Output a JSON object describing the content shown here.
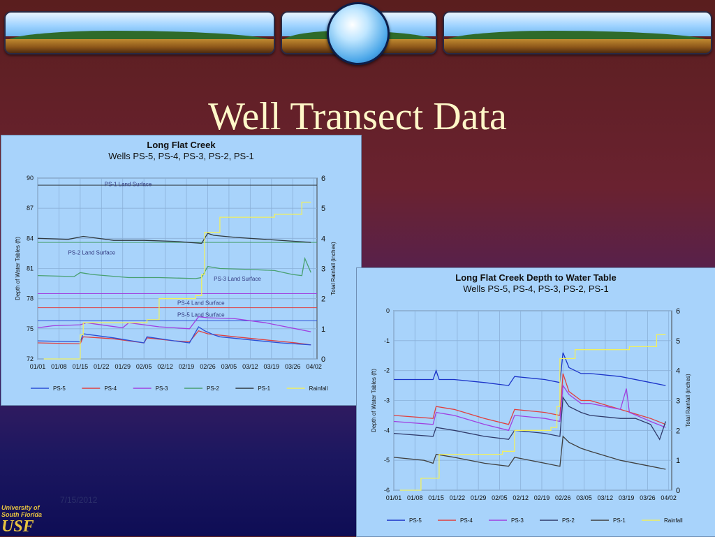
{
  "slide": {
    "title": "Well Transect Data",
    "date": "7/15/2012",
    "logo": {
      "line1": "University of",
      "line2": "South Florida",
      "mark": "USF"
    }
  },
  "chart_data": [
    {
      "type": "line",
      "title": "Long Flat Creek",
      "subtitle": "Wells PS-5, PS-4, PS-3, PS-2, PS-1",
      "ylabel": "Depth of Water Tables (ft)",
      "y2label": "Total Rainfall (inches)",
      "ylim": [
        72,
        90
      ],
      "y2lim": [
        0,
        6
      ],
      "yticks": [
        "72",
        "75",
        "78",
        "81",
        "84",
        "87",
        "90"
      ],
      "y2ticks": [
        "0",
        "1",
        "2",
        "3",
        "4",
        "5",
        "6"
      ],
      "xlim": [
        0,
        92
      ],
      "xticks": [
        0,
        7,
        14,
        21,
        28,
        35,
        42,
        49,
        56,
        63,
        70,
        77,
        84,
        91
      ],
      "xticklabels": [
        "01/01",
        "01/08",
        "01/15",
        "01/22",
        "01/29",
        "02/05",
        "02/12",
        "02/19",
        "02/26",
        "03/05",
        "03/12",
        "03/19",
        "03/26",
        "04/02"
      ],
      "grid": true,
      "legend_position": "bottom",
      "legend": [
        "PS-5",
        "PS-4",
        "PS-3",
        "PS-2",
        "PS-1",
        "Rainfall"
      ],
      "colors": {
        "PS-5": "#2a4fd6",
        "PS-4": "#e04040",
        "PS-3": "#a040e0",
        "PS-2": "#48a070",
        "PS-1": "#303a40",
        "Rainfall": "#f0f060"
      },
      "annotations": [
        {
          "text": "PS-1 Land Surface",
          "x": 22,
          "y": 89.2
        },
        {
          "text": "PS-2 Land Surface",
          "x": 10,
          "y": 82.4
        },
        {
          "text": "PS-3 Land Surface",
          "x": 58,
          "y": 79.8
        },
        {
          "text": "PS-4 Land Surface",
          "x": 46,
          "y": 77.4
        },
        {
          "text": "PS-5 Land Surface",
          "x": 46,
          "y": 76.2
        }
      ],
      "reference_lines": [
        {
          "color": "#303a40",
          "y": 89.3
        },
        {
          "color": "#48a070",
          "y": 83.6
        },
        {
          "color": "#a040e0",
          "y": 78.5
        },
        {
          "color": "#e04040",
          "y": 77.1
        },
        {
          "color": "#2a4fd6",
          "y": 75.8
        }
      ],
      "series": [
        {
          "name": "PS-1",
          "axis": "y",
          "x": [
            0,
            10,
            15,
            25,
            35,
            45,
            54,
            56,
            58,
            65,
            75,
            85,
            90
          ],
          "y": [
            84,
            83.9,
            84.2,
            83.8,
            83.8,
            83.7,
            83.5,
            84.5,
            84.3,
            84.1,
            83.9,
            83.7,
            83.6
          ]
        },
        {
          "name": "PS-2",
          "axis": "y",
          "x": [
            0,
            12,
            14,
            18,
            30,
            40,
            52,
            54,
            56,
            60,
            70,
            78,
            84,
            87,
            88,
            90
          ],
          "y": [
            80.3,
            80.2,
            80.6,
            80.4,
            80.1,
            80.1,
            80,
            80.1,
            81.2,
            81,
            80.9,
            80.8,
            80.4,
            80.3,
            82,
            80.6
          ]
        },
        {
          "name": "PS-3",
          "axis": "y",
          "x": [
            0,
            5,
            14,
            16,
            28,
            30,
            40,
            50,
            53,
            56,
            65,
            70,
            75,
            80,
            85,
            90
          ],
          "y": [
            75.1,
            75.3,
            75.4,
            75.6,
            75.1,
            75.6,
            75.2,
            75,
            76.2,
            76.1,
            76,
            75.8,
            75.6,
            75.3,
            75,
            74.7
          ]
        },
        {
          "name": "PS-4",
          "axis": "y",
          "x": [
            0,
            14,
            15,
            25,
            35,
            36,
            45,
            50,
            53,
            56,
            65,
            75,
            85,
            90
          ],
          "y": [
            73.6,
            73.5,
            74.2,
            74,
            73.6,
            74.1,
            73.8,
            73.7,
            74.8,
            74.5,
            74.2,
            73.9,
            73.6,
            73.4
          ]
        },
        {
          "name": "PS-5",
          "axis": "y",
          "x": [
            0,
            14,
            15,
            25,
            35,
            36,
            45,
            50,
            53,
            55,
            58,
            60,
            70,
            80,
            90
          ],
          "y": [
            73.8,
            73.7,
            74.5,
            74.1,
            73.6,
            74.2,
            73.8,
            73.6,
            75.2,
            74.8,
            74.4,
            74.2,
            73.9,
            73.6,
            73.4
          ]
        },
        {
          "name": "Rainfall",
          "axis": "y2",
          "x": [
            2,
            14,
            15,
            23,
            36,
            40,
            52,
            54,
            55,
            60,
            70,
            78,
            86,
            87,
            90
          ],
          "y": [
            0,
            0.8,
            1.2,
            1.2,
            1.3,
            2,
            2.1,
            2.8,
            4.2,
            4.7,
            4.7,
            4.8,
            4.8,
            5.2,
            5.2
          ]
        }
      ]
    },
    {
      "type": "line",
      "title": "Long Flat Creek Depth to Water Table",
      "subtitle": "Wells PS-5, PS-4, PS-3, PS-2, PS-1",
      "ylabel": "Depth of Water Tables (ft)",
      "y2label": "Total Rainfall (inches)",
      "ylim": [
        -6,
        0
      ],
      "y2lim": [
        0,
        6
      ],
      "yticks": [
        "-6",
        "-5",
        "-4",
        "-3",
        "-2",
        "-1",
        "0"
      ],
      "y2ticks": [
        "0",
        "1",
        "2",
        "3",
        "4",
        "5",
        "6"
      ],
      "xlim": [
        0,
        92
      ],
      "xticks": [
        0,
        7,
        14,
        21,
        28,
        35,
        42,
        49,
        56,
        63,
        70,
        77,
        84,
        91
      ],
      "xticklabels": [
        "01/01",
        "01/08",
        "01/15",
        "01/22",
        "01/29",
        "02/05",
        "02/12",
        "02/19",
        "02/26",
        "03/05",
        "03/12",
        "03/19",
        "03/26",
        "04/02"
      ],
      "grid": true,
      "legend_position": "bottom",
      "legend": [
        "PS-5",
        "PS-4",
        "PS-3",
        "PS-2",
        "PS-1",
        "Rainfall"
      ],
      "colors": {
        "PS-5": "#1b33c8",
        "PS-4": "#e04040",
        "PS-3": "#a040e0",
        "PS-2": "#303a6a",
        "PS-1": "#404040",
        "Rainfall": "#f0f060"
      },
      "series": [
        {
          "name": "PS-5",
          "axis": "y",
          "x": [
            0,
            5,
            13,
            14,
            15,
            20,
            30,
            38,
            40,
            50,
            55,
            56,
            58,
            62,
            65,
            75,
            85,
            90
          ],
          "y": [
            -2.3,
            -2.3,
            -2.3,
            -2,
            -2.3,
            -2.3,
            -2.4,
            -2.5,
            -2.2,
            -2.3,
            -2.4,
            -1.4,
            -1.9,
            -2.1,
            -2.1,
            -2.2,
            -2.4,
            -2.5
          ]
        },
        {
          "name": "PS-4",
          "axis": "y",
          "x": [
            0,
            13,
            14,
            20,
            30,
            38,
            40,
            50,
            55,
            56,
            58,
            62,
            65,
            75,
            85,
            90
          ],
          "y": [
            -3.5,
            -3.6,
            -3.2,
            -3.3,
            -3.6,
            -3.8,
            -3.3,
            -3.4,
            -3.5,
            -2.1,
            -2.7,
            -3,
            -3,
            -3.3,
            -3.6,
            -3.8
          ]
        },
        {
          "name": "PS-3",
          "axis": "y",
          "x": [
            0,
            13,
            14,
            20,
            30,
            38,
            40,
            50,
            55,
            56,
            58,
            62,
            65,
            75,
            77,
            78,
            85,
            90
          ],
          "y": [
            -3.7,
            -3.8,
            -3.4,
            -3.5,
            -3.8,
            -4,
            -3.5,
            -3.6,
            -3.7,
            -2.5,
            -2.8,
            -3.1,
            -3.1,
            -3.3,
            -2.6,
            -3.4,
            -3.7,
            -3.9
          ]
        },
        {
          "name": "PS-2",
          "axis": "y",
          "x": [
            0,
            13,
            14,
            20,
            30,
            38,
            40,
            50,
            55,
            56,
            58,
            62,
            65,
            75,
            80,
            85,
            88,
            90
          ],
          "y": [
            -4.1,
            -4.2,
            -3.9,
            -4,
            -4.2,
            -4.3,
            -4,
            -4.1,
            -4.2,
            -2.9,
            -3.2,
            -3.4,
            -3.5,
            -3.6,
            -3.6,
            -3.8,
            -4.3,
            -3.7
          ]
        },
        {
          "name": "PS-1",
          "axis": "y",
          "x": [
            0,
            10,
            13,
            14,
            20,
            30,
            38,
            40,
            50,
            55,
            56,
            58,
            62,
            65,
            75,
            85,
            90
          ],
          "y": [
            -4.9,
            -5,
            -5.1,
            -4.8,
            -4.9,
            -5.1,
            -5.2,
            -4.9,
            -5.1,
            -5.2,
            -4.2,
            -4.4,
            -4.6,
            -4.7,
            -5,
            -5.2,
            -5.3
          ]
        },
        {
          "name": "Rainfall",
          "axis": "y2",
          "x": [
            2,
            9,
            14,
            15,
            23,
            36,
            40,
            52,
            54,
            55,
            60,
            70,
            78,
            86,
            87,
            90
          ],
          "y": [
            0,
            0.4,
            0.4,
            1.2,
            1.2,
            1.3,
            2,
            2.1,
            2.8,
            4.4,
            4.7,
            4.7,
            4.8,
            4.8,
            5.2,
            5.2
          ]
        }
      ]
    }
  ]
}
